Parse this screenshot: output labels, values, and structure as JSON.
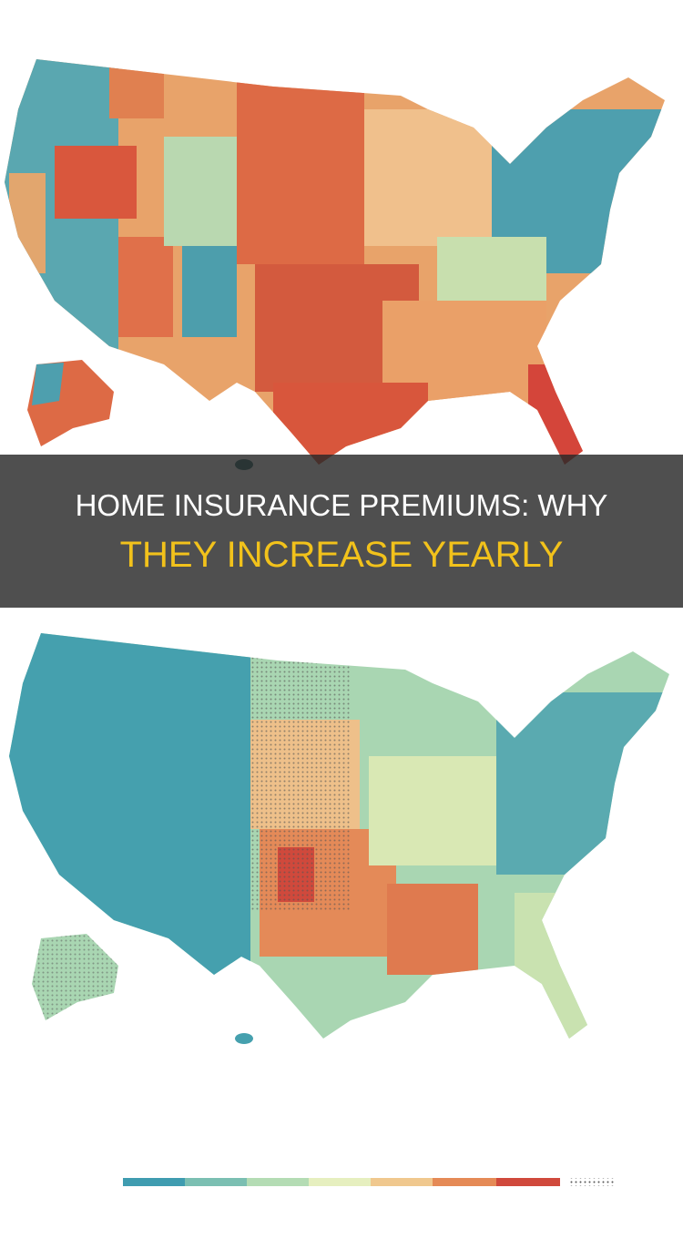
{
  "banner": {
    "line1": "HOME INSURANCE PREMIUMS: WHY",
    "line2": "THEY INCREASE YEARLY"
  }
}
